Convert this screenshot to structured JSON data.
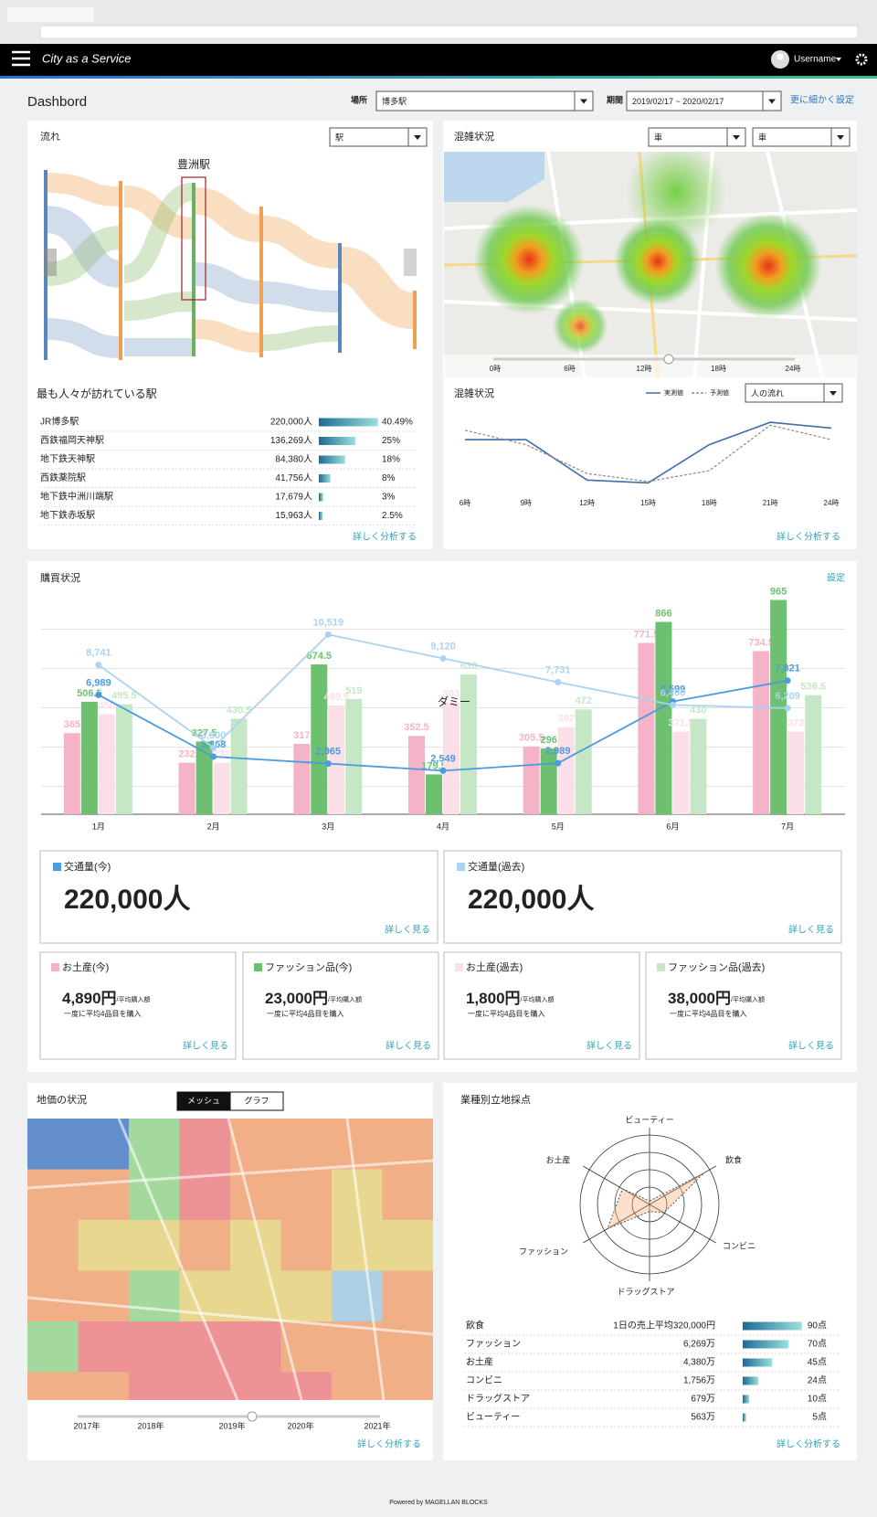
{
  "header": {
    "brand": "City as a Service",
    "user": "Username"
  },
  "toolbar": {
    "title": "Dashbord",
    "place_label": "場所",
    "place": "博多駅",
    "period_label": "期間",
    "period": "2019/02/17 ~ 2020/02/17",
    "more": "更に細かく設定"
  },
  "flow": {
    "title": "流れ",
    "select": "駅",
    "highlight": "豊洲駅"
  },
  "stations": {
    "title": "最も人々が訪れている駅",
    "rows": [
      {
        "name": "JR博多駅",
        "visitors": "220,000人",
        "share": 40.49,
        "share_label": "40.49%"
      },
      {
        "name": "西鉄福岡天神駅",
        "visitors": "136,269人",
        "share": 25,
        "share_label": "25%"
      },
      {
        "name": "地下鉄天神駅",
        "visitors": "84,380人",
        "share": 18,
        "share_label": "18%"
      },
      {
        "name": "西鉄薬院駅",
        "visitors": "41,756人",
        "share": 8,
        "share_label": "8%"
      },
      {
        "name": "地下鉄中洲川端駅",
        "visitors": "17,679人",
        "share": 3,
        "share_label": "3%"
      },
      {
        "name": "地下鉄赤坂駅",
        "visitors": "15,963人",
        "share": 2.5,
        "share_label": "2.5%"
      }
    ],
    "link": "詳しく分析する"
  },
  "congestion_map": {
    "title": "混雑状況",
    "selects": [
      "車",
      "車"
    ],
    "times": [
      "0時",
      "6時",
      "12時",
      "18時",
      "24時"
    ]
  },
  "congestion_chart": {
    "type": "line",
    "title": "混雑状況",
    "categories": [
      "6時",
      "9時",
      "12時",
      "15時",
      "18時",
      "21時",
      "24時"
    ],
    "series": [
      {
        "name": "実測値",
        "color": "#3f6fa8",
        "values": [
          67,
          67,
          11,
          7,
          60,
          91,
          83
        ]
      },
      {
        "name": "予測値",
        "color": "#8a8a8a",
        "dash": true,
        "values": [
          80,
          60,
          20,
          9,
          24,
          87,
          67
        ]
      }
    ],
    "ylim": [
      0,
      100
    ],
    "select": "人の流れ",
    "link": "詳しく分析する"
  },
  "purchase": {
    "type": "combo",
    "title": "購買状況",
    "settings": "設定",
    "annotation": "ダミー",
    "categories": [
      "1月",
      "2月",
      "3月",
      "4月",
      "5月",
      "6月",
      "7月"
    ],
    "series": [
      {
        "name": "お土産(今)",
        "color": "#f4b3c6",
        "values": [
          365,
          232,
          317,
          352.5,
          305.5,
          771.5,
          734.5
        ]
      },
      {
        "name": "ファッション品(今)",
        "color": "#6cc070",
        "values": [
          506.5,
          327.5,
          674.5,
          179.5,
          296,
          866,
          965
        ]
      },
      {
        "name": "お土産(過去)",
        "color": "#fbdfe8",
        "values": [
          450,
          232,
          489.5,
          503,
          392,
          371.5,
          372
        ]
      },
      {
        "name": "ファッション品(過去)",
        "color": "#c6e7c6",
        "values": [
          495.5,
          430.5,
          519,
          630,
          472,
          430,
          536.5
        ]
      },
      {
        "name": "交通量(今)",
        "color": "#4a9be0",
        "axis": "y2",
        "values": [
          6989,
          3368,
          2965,
          2549,
          2989,
          6599,
          7821
        ],
        "value_labels": [
          "6,989",
          "3,368",
          "2,965",
          "2,549",
          "2,989",
          "6,599",
          "7,821"
        ]
      },
      {
        "name": "交通量(過去)",
        "color": "#a9d3f2",
        "axis": "y2",
        "values": [
          8741,
          3900,
          10519,
          9120,
          7731,
          6400,
          6209
        ],
        "value_labels": [
          "8,741",
          "3,900",
          "10,519",
          "9,120",
          "7,731",
          "6,400",
          "6,209"
        ]
      }
    ],
    "ylim": [
      0,
      1000
    ],
    "y2lim": [
      0,
      13000
    ]
  },
  "kpi": {
    "large": [
      {
        "series": 4,
        "value": "220,000人",
        "link": "詳しく見る"
      },
      {
        "series": 5,
        "value": "220,000人",
        "link": "詳しく見る"
      }
    ],
    "small": [
      {
        "series": 0,
        "amount": "4,890円",
        "unit": "/平均購入額",
        "note": "一度に平均4品目を購入",
        "link": "詳しく見る"
      },
      {
        "series": 1,
        "amount": "23,000円",
        "unit": "/平均購入額",
        "note": "一度に平均4品目を購入",
        "link": "詳しく見る"
      },
      {
        "series": 2,
        "amount": "1,800円",
        "unit": "/平均購入額",
        "note": "一度に平均4品目を購入",
        "link": "詳しく見る"
      },
      {
        "series": 3,
        "amount": "38,000円",
        "unit": "/平均購入額",
        "note": "一度に平均4品目を購入",
        "link": "詳しく見る"
      }
    ]
  },
  "land": {
    "title": "地価の状況",
    "tabs": [
      "メッシュ",
      "グラフ"
    ],
    "years": [
      "2017年",
      "2018年",
      "2019年",
      "2020年",
      "2021年"
    ],
    "link": "詳しく分析する"
  },
  "industry": {
    "title": "業種別立地採点",
    "radar": {
      "type": "radar",
      "axes": [
        "ビューティー",
        "飲食",
        "コンビニ",
        "ドラッグストア",
        "ファッション",
        "お土産"
      ],
      "values": [
        5,
        90,
        24,
        10,
        70,
        45
      ],
      "ylim": [
        0,
        100
      ],
      "color": "#f5a66b"
    },
    "rows": [
      {
        "name": "飲食",
        "sales": "1日の売上平均320,000円",
        "score": 90,
        "score_label": "90点"
      },
      {
        "name": "ファッション",
        "sales": "6,269万",
        "score": 70,
        "score_label": "70点"
      },
      {
        "name": "お土産",
        "sales": "4,380万",
        "score": 45,
        "score_label": "45点"
      },
      {
        "name": "コンビニ",
        "sales": "1,756万",
        "score": 24,
        "score_label": "24点"
      },
      {
        "name": "ドラッグストア",
        "sales": "679万",
        "score": 10,
        "score_label": "10点"
      },
      {
        "name": "ビューティー",
        "sales": "563万",
        "score": 5,
        "score_label": "5点"
      }
    ],
    "link": "詳しく分析する"
  },
  "footer": "Powered by MAGELLAN BLOCKS"
}
